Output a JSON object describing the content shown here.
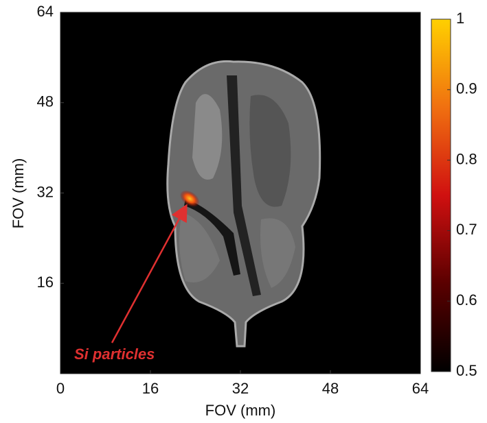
{
  "chart_data": {
    "type": "image",
    "xlabel": "FOV (mm)",
    "ylabel": "FOV (mm)",
    "xlim": [
      0,
      64
    ],
    "ylim": [
      0,
      64
    ],
    "xticks": [
      0,
      16,
      32,
      48,
      64
    ],
    "yticks": [
      16,
      32,
      48,
      64
    ],
    "colorbar": {
      "clim": [
        0.5,
        1
      ],
      "ticks": [
        0.5,
        0.6,
        0.7,
        0.8,
        0.9,
        1
      ],
      "colormap": [
        "#000000",
        "#5a0000",
        "#d01010",
        "#f07010",
        "#ffd000"
      ]
    },
    "annotation": {
      "text": "Si particles",
      "xy": [
        23,
        31
      ]
    }
  }
}
